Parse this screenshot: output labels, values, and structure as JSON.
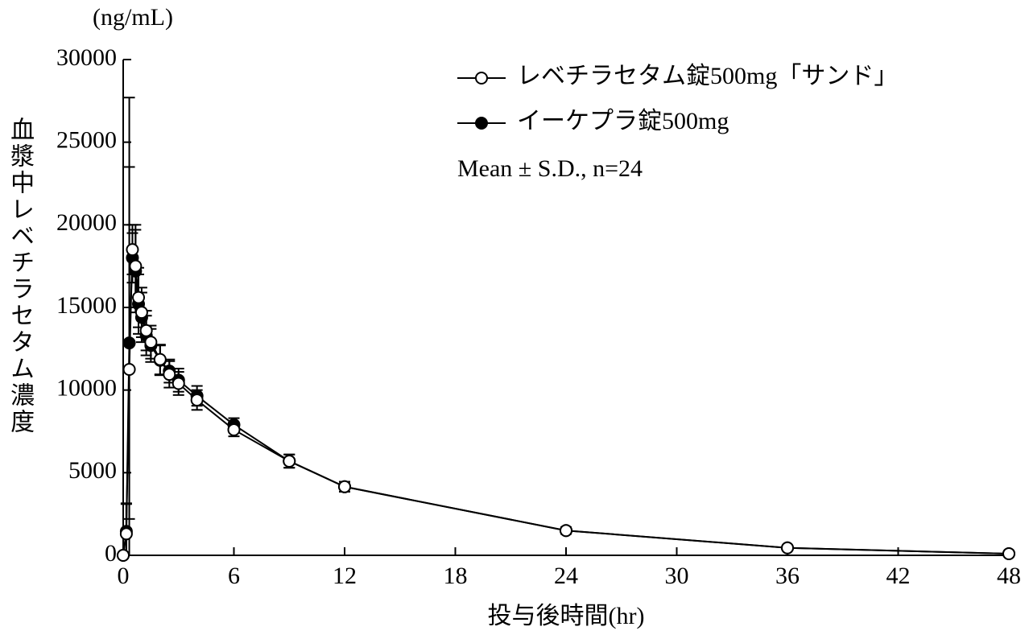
{
  "chart_data": {
    "type": "line",
    "y_unit": "(ng/mL)",
    "y_label": "血漿中レベチラセタム濃度",
    "x_label": "投与後時間(hr)",
    "annotation": "Mean ± S.D., n=24",
    "x": [
      0,
      0.17,
      0.33,
      0.5,
      0.67,
      0.83,
      1,
      1.25,
      1.5,
      2,
      2.5,
      3,
      4,
      6,
      9,
      12,
      24,
      36,
      48
    ],
    "series": [
      {
        "name": "イーケプラ錠500mg",
        "color": "#000000",
        "marker": "filled",
        "values": [
          0,
          1450,
          12850,
          18000,
          17200,
          15200,
          14400,
          13300,
          12700,
          11800,
          11150,
          10600,
          9650,
          7900,
          5700,
          4150,
          1500,
          450,
          100
        ],
        "sd": [
          0,
          1700,
          10650,
          1500,
          2500,
          1800,
          1500,
          1200,
          1000,
          900,
          700,
          700,
          600,
          400,
          400,
          300,
          200,
          100,
          50
        ]
      },
      {
        "name": "レベチラセタム錠500mg「サンド」",
        "color": "#000000",
        "marker": "open",
        "values": [
          0,
          1300,
          11250,
          18500,
          17500,
          15600,
          14700,
          13600,
          12900,
          11850,
          10950,
          10400,
          9400,
          7600,
          5700,
          4150,
          1500,
          450,
          100
        ],
        "sd": [
          0,
          1800,
          16450,
          1500,
          2500,
          1800,
          1500,
          1200,
          1000,
          900,
          800,
          700,
          600,
          400,
          400,
          300,
          200,
          100,
          50
        ]
      }
    ],
    "legend_order": [
      1,
      0
    ],
    "xlim": [
      0,
      48
    ],
    "xticks": [
      0,
      6,
      12,
      18,
      24,
      30,
      36,
      42,
      48
    ],
    "ylim": [
      0,
      30000
    ],
    "yticks": [
      0,
      5000,
      10000,
      15000,
      20000,
      25000,
      30000
    ]
  }
}
